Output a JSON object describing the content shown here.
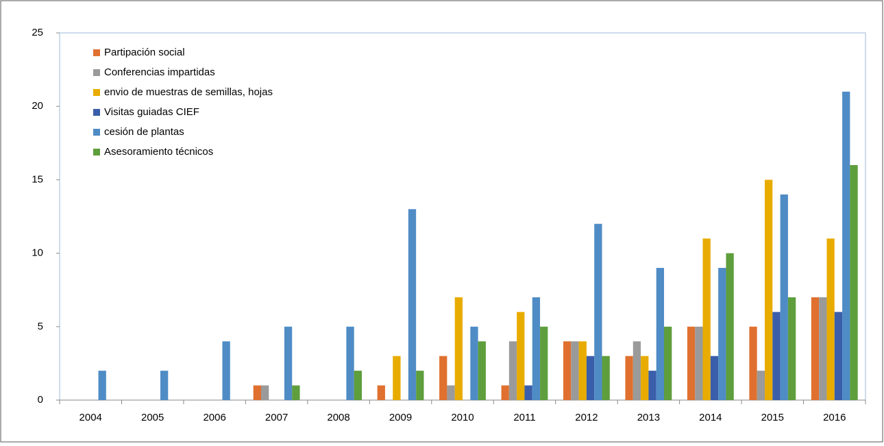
{
  "chart_data": {
    "type": "bar",
    "categories": [
      "2004",
      "2005",
      "2006",
      "2007",
      "2008",
      "2009",
      "2010",
      "2011",
      "2012",
      "2013",
      "2014",
      "2015",
      "2016"
    ],
    "series": [
      {
        "name": "Partipación social",
        "color": "#E0702F",
        "values": [
          0,
          0,
          0,
          1,
          0,
          1,
          3,
          1,
          4,
          3,
          5,
          5,
          7
        ]
      },
      {
        "name": "Conferencias  impartidas",
        "color": "#9A9A9A",
        "values": [
          0,
          0,
          0,
          1,
          0,
          0,
          1,
          4,
          4,
          4,
          5,
          2,
          7
        ]
      },
      {
        "name": "envio de muestras de semillas, hojas",
        "color": "#E8AC00",
        "values": [
          0,
          0,
          0,
          0,
          0,
          3,
          7,
          6,
          4,
          3,
          11,
          15,
          11
        ]
      },
      {
        "name": "Visitas guiadas CIEF",
        "color": "#3A5EAA",
        "values": [
          0,
          0,
          0,
          0,
          0,
          0,
          0,
          1,
          3,
          2,
          3,
          6,
          6
        ]
      },
      {
        "name": "cesión de plantas",
        "color": "#4F8CC6",
        "values": [
          2,
          2,
          4,
          5,
          5,
          13,
          5,
          7,
          12,
          9,
          9,
          14,
          21
        ]
      },
      {
        "name": "Asesoramiento técnicos",
        "color": "#5E9E3C",
        "values": [
          0,
          0,
          0,
          1,
          2,
          2,
          4,
          5,
          3,
          5,
          10,
          7,
          16
        ]
      }
    ],
    "ylim": [
      0,
      25
    ],
    "yticks": [
      0,
      5,
      10,
      15,
      20,
      25
    ],
    "grid": false,
    "legend": "top-left"
  }
}
